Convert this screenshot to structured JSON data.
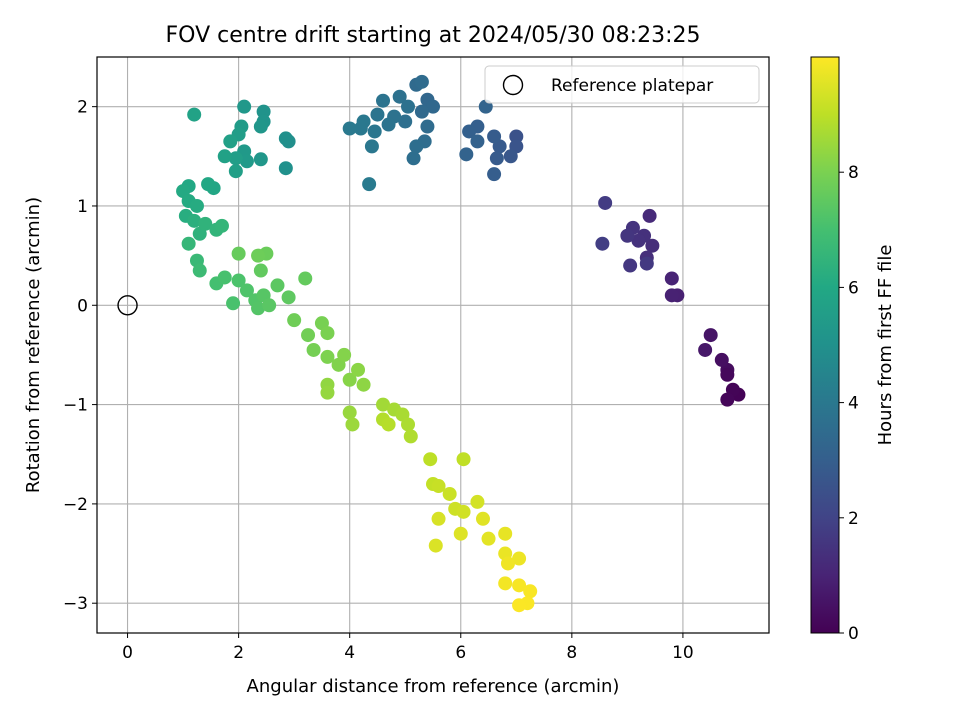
{
  "chart_data": {
    "type": "scatter",
    "title": "FOV centre drift starting at 2024/05/30 08:23:25",
    "xlabel": "Angular distance from reference (arcmin)",
    "ylabel": "Rotation from reference (arcmin)",
    "xlim": [
      -0.55,
      11.55
    ],
    "ylim": [
      -3.3,
      2.5
    ],
    "x_ticks": [
      0,
      2,
      4,
      6,
      8,
      10
    ],
    "y_ticks": [
      -3,
      -2,
      -1,
      0,
      1,
      2
    ],
    "x_tick_labels": [
      "0",
      "2",
      "4",
      "6",
      "8",
      "10"
    ],
    "y_tick_labels": [
      "−3",
      "−2",
      "−1",
      "0",
      "1",
      "2"
    ],
    "grid": true,
    "colormap": "viridis",
    "colorbar": {
      "label": "Hours from first FF file",
      "range": [
        0,
        10
      ],
      "ticks": [
        0,
        2,
        4,
        6,
        8
      ],
      "tick_labels": [
        "0",
        "2",
        "4",
        "6",
        "8"
      ]
    },
    "legend": {
      "position": "top-right",
      "entries": [
        "Reference platepar"
      ]
    },
    "reference_point": {
      "name": "Reference platepar",
      "x": 0,
      "y": 0
    },
    "points": [
      [
        11.0,
        -0.9,
        0.05
      ],
      [
        10.9,
        -0.85,
        0.1
      ],
      [
        10.8,
        -0.95,
        0.15
      ],
      [
        10.8,
        -0.65,
        0.3
      ],
      [
        10.7,
        -0.55,
        0.4
      ],
      [
        10.5,
        -0.3,
        0.55
      ],
      [
        10.4,
        -0.45,
        0.65
      ],
      [
        10.8,
        -0.7,
        0.2
      ],
      [
        9.9,
        0.1,
        0.9
      ],
      [
        9.8,
        0.1,
        0.95
      ],
      [
        9.8,
        0.27,
        1.0
      ],
      [
        9.4,
        0.9,
        1.2
      ],
      [
        9.45,
        0.6,
        1.3
      ],
      [
        9.35,
        0.48,
        1.35
      ],
      [
        9.3,
        0.7,
        1.4
      ],
      [
        9.2,
        0.65,
        1.45
      ],
      [
        9.1,
        0.78,
        1.5
      ],
      [
        9.0,
        0.7,
        1.55
      ],
      [
        9.05,
        0.4,
        1.6
      ],
      [
        9.35,
        0.42,
        1.65
      ],
      [
        8.6,
        1.03,
        1.75
      ],
      [
        8.55,
        0.62,
        1.8
      ],
      [
        7.0,
        1.7,
        2.5
      ],
      [
        7.0,
        1.6,
        2.6
      ],
      [
        6.9,
        1.5,
        2.7
      ],
      [
        6.7,
        1.6,
        2.8
      ],
      [
        6.65,
        1.48,
        2.85
      ],
      [
        6.6,
        1.7,
        2.9
      ],
      [
        6.6,
        1.32,
        2.95
      ],
      [
        6.3,
        1.8,
        3.0
      ],
      [
        6.15,
        1.75,
        3.05
      ],
      [
        6.3,
        1.65,
        3.1
      ],
      [
        6.1,
        1.52,
        3.15
      ],
      [
        6.45,
        2.0,
        3.2
      ],
      [
        5.4,
        2.07,
        3.3
      ],
      [
        5.5,
        2.0,
        3.35
      ],
      [
        5.3,
        1.95,
        3.4
      ],
      [
        5.2,
        2.22,
        3.45
      ],
      [
        5.3,
        2.25,
        3.5
      ],
      [
        5.4,
        1.8,
        3.5
      ],
      [
        5.35,
        1.65,
        3.55
      ],
      [
        5.2,
        1.6,
        3.6
      ],
      [
        5.15,
        1.48,
        3.6
      ],
      [
        5.0,
        1.85,
        3.65
      ],
      [
        4.9,
        2.1,
        3.7
      ],
      [
        5.05,
        2.0,
        3.7
      ],
      [
        4.8,
        1.9,
        3.75
      ],
      [
        4.7,
        1.82,
        3.8
      ],
      [
        4.6,
        2.06,
        3.8
      ],
      [
        4.5,
        1.92,
        3.85
      ],
      [
        4.45,
        1.75,
        3.9
      ],
      [
        4.4,
        1.6,
        3.95
      ],
      [
        4.25,
        1.85,
        4.0
      ],
      [
        4.2,
        1.78,
        4.0
      ],
      [
        4.0,
        1.78,
        4.05
      ],
      [
        4.35,
        1.22,
        4.1
      ],
      [
        2.9,
        1.65,
        4.9
      ],
      [
        2.85,
        1.68,
        4.95
      ],
      [
        2.85,
        1.38,
        5.0
      ],
      [
        2.45,
        1.95,
        5.1
      ],
      [
        2.45,
        1.85,
        5.15
      ],
      [
        2.4,
        1.8,
        5.2
      ],
      [
        2.4,
        1.47,
        5.25
      ],
      [
        2.1,
        2.0,
        5.3
      ],
      [
        2.1,
        1.55,
        5.35
      ],
      [
        2.15,
        1.45,
        5.4
      ],
      [
        2.05,
        1.8,
        5.45
      ],
      [
        2.0,
        1.72,
        5.5
      ],
      [
        1.95,
        1.48,
        5.55
      ],
      [
        1.95,
        1.35,
        5.6
      ],
      [
        1.85,
        1.65,
        5.65
      ],
      [
        1.75,
        1.5,
        5.7
      ],
      [
        1.2,
        1.92,
        5.75
      ],
      [
        1.55,
        1.18,
        5.9
      ],
      [
        1.45,
        1.22,
        5.95
      ],
      [
        1.1,
        1.2,
        6.0
      ],
      [
        1.0,
        1.15,
        6.05
      ],
      [
        1.1,
        1.05,
        6.1
      ],
      [
        1.25,
        1.0,
        6.15
      ],
      [
        1.05,
        0.9,
        6.2
      ],
      [
        1.2,
        0.85,
        6.3
      ],
      [
        1.3,
        0.72,
        6.4
      ],
      [
        1.4,
        0.82,
        6.45
      ],
      [
        1.6,
        0.76,
        6.5
      ],
      [
        1.7,
        0.8,
        6.55
      ],
      [
        1.1,
        0.62,
        6.6
      ],
      [
        1.25,
        0.45,
        6.7
      ],
      [
        1.3,
        0.35,
        6.8
      ],
      [
        1.6,
        0.22,
        7.0
      ],
      [
        1.75,
        0.28,
        7.05
      ],
      [
        1.9,
        0.02,
        7.1
      ],
      [
        2.0,
        0.25,
        7.15
      ],
      [
        2.15,
        0.15,
        7.2
      ],
      [
        2.3,
        0.05,
        7.25
      ],
      [
        2.35,
        -0.03,
        7.3
      ],
      [
        2.45,
        0.1,
        7.35
      ],
      [
        2.55,
        0.0,
        7.4
      ],
      [
        2.7,
        0.2,
        7.45
      ],
      [
        2.9,
        0.08,
        7.5
      ],
      [
        2.4,
        0.35,
        7.55
      ],
      [
        3.2,
        0.27,
        7.6
      ],
      [
        2.0,
        0.52,
        7.65
      ],
      [
        2.5,
        0.52,
        7.7
      ],
      [
        2.35,
        0.5,
        7.75
      ],
      [
        3.0,
        -0.15,
        7.8
      ],
      [
        3.25,
        -0.3,
        7.85
      ],
      [
        3.35,
        -0.45,
        7.9
      ],
      [
        3.5,
        -0.18,
        7.95
      ],
      [
        3.6,
        -0.28,
        8.0
      ],
      [
        3.6,
        -0.52,
        8.05
      ],
      [
        3.8,
        -0.6,
        8.1
      ],
      [
        3.9,
        -0.5,
        8.15
      ],
      [
        4.0,
        -0.75,
        8.2
      ],
      [
        4.15,
        -0.65,
        8.25
      ],
      [
        4.25,
        -0.8,
        8.3
      ],
      [
        3.6,
        -0.8,
        8.35
      ],
      [
        3.6,
        -0.88,
        8.4
      ],
      [
        4.0,
        -1.08,
        8.45
      ],
      [
        4.05,
        -1.2,
        8.5
      ],
      [
        4.6,
        -1.0,
        8.6
      ],
      [
        4.8,
        -1.05,
        8.65
      ],
      [
        4.95,
        -1.1,
        8.7
      ],
      [
        5.05,
        -1.2,
        8.75
      ],
      [
        5.1,
        -1.32,
        8.8
      ],
      [
        4.6,
        -1.15,
        8.85
      ],
      [
        4.7,
        -1.2,
        8.9
      ],
      [
        5.45,
        -1.55,
        9.0
      ],
      [
        6.05,
        -1.55,
        9.05
      ],
      [
        5.5,
        -1.8,
        9.1
      ],
      [
        5.6,
        -1.82,
        9.15
      ],
      [
        5.8,
        -1.9,
        9.2
      ],
      [
        5.9,
        -2.05,
        9.25
      ],
      [
        6.05,
        -2.08,
        9.3
      ],
      [
        6.3,
        -1.98,
        9.35
      ],
      [
        5.6,
        -2.15,
        9.4
      ],
      [
        5.55,
        -2.42,
        9.45
      ],
      [
        6.0,
        -2.3,
        9.5
      ],
      [
        6.4,
        -2.15,
        9.55
      ],
      [
        6.5,
        -2.35,
        9.6
      ],
      [
        6.8,
        -2.3,
        9.65
      ],
      [
        6.8,
        -2.5,
        9.7
      ],
      [
        7.05,
        -2.55,
        9.75
      ],
      [
        6.85,
        -2.6,
        9.8
      ],
      [
        6.8,
        -2.8,
        9.85
      ],
      [
        7.05,
        -2.82,
        9.9
      ],
      [
        7.25,
        -2.88,
        9.92
      ],
      [
        7.2,
        -3.0,
        9.95
      ],
      [
        7.05,
        -3.02,
        9.97
      ]
    ]
  }
}
